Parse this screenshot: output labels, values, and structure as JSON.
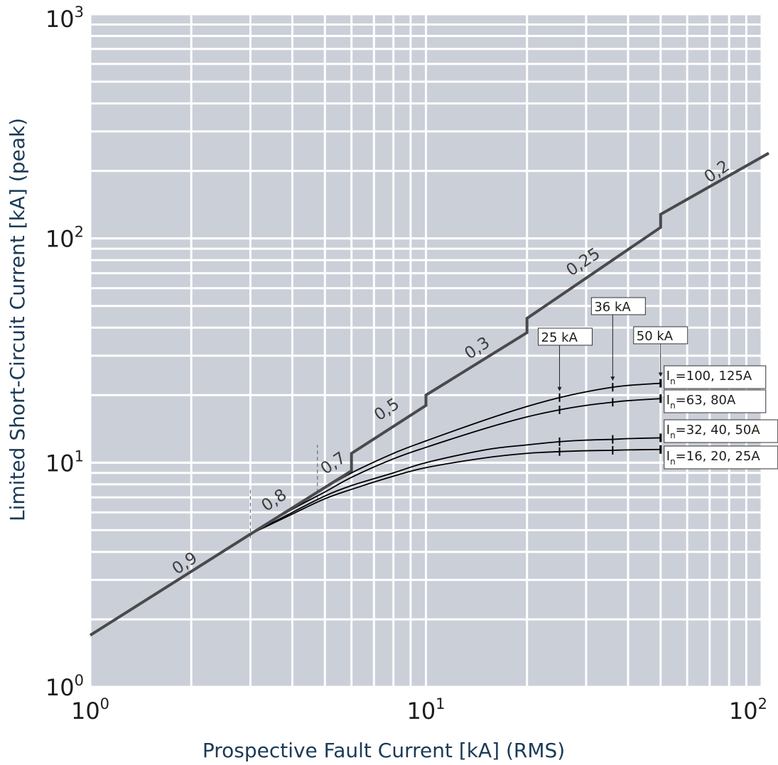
{
  "chart_data": {
    "type": "line",
    "xscale": "log",
    "yscale": "log",
    "xlim": [
      1,
      100
    ],
    "ylim": [
      1,
      1000
    ],
    "grid": true,
    "xlabel": "Prospective Fault Current [kA]    (RMS)",
    "ylabel": "Limited Short-Circuit Current [kA]   (peak)",
    "x_ticks": [
      {
        "value": 1,
        "base": "10",
        "exp": "0"
      },
      {
        "value": 10,
        "base": "10",
        "exp": "1"
      },
      {
        "value": 100,
        "base": "10",
        "exp": "2"
      }
    ],
    "y_ticks": [
      {
        "value": 1,
        "base": "10",
        "exp": "0"
      },
      {
        "value": 10,
        "base": "10",
        "exp": "1"
      },
      {
        "value": 100,
        "base": "10",
        "exp": "2"
      },
      {
        "value": 1000,
        "base": "10",
        "exp": "3"
      }
    ],
    "power_factor_line": {
      "points": [
        [
          1,
          1.7
        ],
        [
          3,
          4.8
        ],
        [
          6,
          9.2
        ],
        [
          6,
          11
        ],
        [
          10,
          18
        ],
        [
          10,
          20
        ],
        [
          20,
          38
        ],
        [
          20,
          44
        ],
        [
          50,
          112
        ],
        [
          50,
          128
        ],
        [
          105,
          240
        ]
      ],
      "labels": [
        {
          "text": "0,9",
          "x": 1.95,
          "y": 3.4
        },
        {
          "text": "0,8",
          "x": 3.6,
          "y": 6.5
        },
        {
          "text": "0,7",
          "x": 5.4,
          "y": 9.5
        },
        {
          "text": "0,5",
          "x": 7.8,
          "y": 16.5
        },
        {
          "text": "0,3",
          "x": 14.5,
          "y": 31
        },
        {
          "text": "0,25",
          "x": 30,
          "y": 75
        },
        {
          "text": "0,2",
          "x": 75,
          "y": 190
        }
      ],
      "dividers": [
        {
          "x": 3,
          "y_from": 4.6,
          "y_to": 7.8
        },
        {
          "x": 4.75,
          "y_from": 6.9,
          "y_to": 12
        }
      ]
    },
    "series": [
      {
        "name": "I_n=100, 125A",
        "x": [
          3,
          4,
          5,
          6,
          8,
          10,
          15,
          20,
          25,
          30,
          36,
          40,
          50
        ],
        "y": [
          4.8,
          6.3,
          7.7,
          9.0,
          11.0,
          12.5,
          15.5,
          17.8,
          19.5,
          20.7,
          21.7,
          22.1,
          22.6
        ]
      },
      {
        "name": "I_n=63, 80A",
        "x": [
          3,
          4,
          5,
          6,
          8,
          10,
          15,
          20,
          25,
          30,
          36,
          40,
          50
        ],
        "y": [
          4.8,
          6.2,
          7.4,
          8.6,
          10.4,
          11.7,
          14.2,
          16.0,
          17.2,
          18.0,
          18.6,
          18.9,
          19.3
        ]
      },
      {
        "name": "I_n=32, 40, 50A",
        "x": [
          3,
          4,
          5,
          6,
          8,
          10,
          15,
          20,
          25,
          30,
          36,
          40,
          50
        ],
        "y": [
          4.8,
          6.0,
          7.1,
          7.9,
          9.0,
          10.0,
          11.4,
          12.0,
          12.4,
          12.6,
          12.7,
          12.8,
          12.9
        ]
      },
      {
        "name": "I_n=16, 20, 25A",
        "x": [
          3,
          4,
          5,
          6,
          8,
          10,
          15,
          20,
          25,
          30,
          36,
          40,
          50
        ],
        "y": [
          4.8,
          5.9,
          6.9,
          7.6,
          8.7,
          9.5,
          10.5,
          11.0,
          11.2,
          11.3,
          11.35,
          11.4,
          11.45
        ]
      }
    ],
    "breaking_capacity_markers": [
      {
        "label": "25 kA",
        "x": 25
      },
      {
        "label": "36 kA",
        "x": 36
      },
      {
        "label": "50 kA",
        "x": 50
      }
    ],
    "series_labels": [
      {
        "subscript": "n",
        "prefix": "I",
        "rest": "=100, 125A"
      },
      {
        "subscript": "n",
        "prefix": "I",
        "rest": "=63, 80A"
      },
      {
        "subscript": "n",
        "prefix": "I",
        "rest": "=32, 40, 50A"
      },
      {
        "subscript": "n",
        "prefix": "I",
        "rest": "=16, 20, 25A"
      }
    ]
  },
  "colors": {
    "plot_background": "#cbcfd8",
    "grid": "#ffffff",
    "pf_line": "#4a4a4c",
    "curves": "#000000",
    "axis_title": "#1b3a57",
    "tick_text": "#1d1d1b"
  }
}
